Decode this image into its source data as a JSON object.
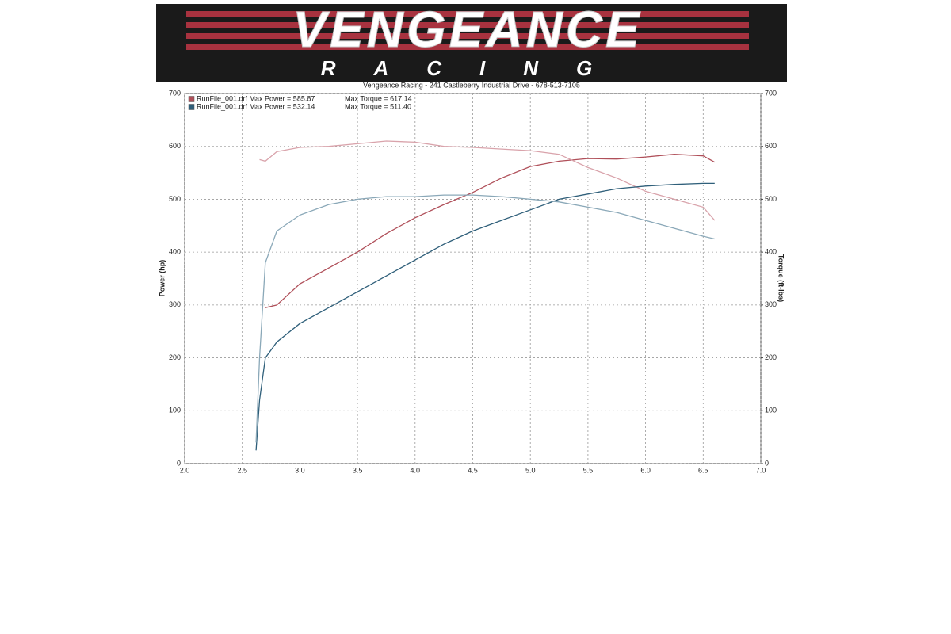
{
  "header": {
    "logo_title": "VENGEANCE",
    "logo_subtitle": "RACING"
  },
  "chart_data": {
    "type": "line",
    "title": "Vengeance Racing - 241 Castleberry Industrial Drive - 678-513-7105",
    "y_label": "Power (hp)",
    "y2_label": "Torque (ft-lbs)",
    "x": [
      2.62,
      2.65,
      2.7,
      2.8,
      3.0,
      3.25,
      3.5,
      3.75,
      4.0,
      4.25,
      4.5,
      4.75,
      5.0,
      5.25,
      5.5,
      5.75,
      6.0,
      6.25,
      6.5,
      6.6
    ],
    "series": [
      {
        "name": "RunFile_001.drf Max Power = 585.87",
        "color": "#b0505a",
        "values": [
          null,
          null,
          295,
          300,
          340,
          370,
          400,
          435,
          465,
          490,
          513,
          540,
          562,
          572,
          577,
          576,
          580,
          585,
          582,
          570
        ]
      },
      {
        "name": "Max Torque = 617.14",
        "color": "#d9a3ab",
        "axis": "y2",
        "values": [
          null,
          575,
          572,
          590,
          598,
          600,
          605,
          610,
          608,
          600,
          598,
          595,
          592,
          585,
          560,
          540,
          515,
          500,
          485,
          460
        ]
      },
      {
        "name": "RunFile_001.drf Max Power = 532.14",
        "color": "#2f5f7a",
        "values": [
          25,
          120,
          200,
          230,
          265,
          295,
          325,
          355,
          385,
          415,
          440,
          460,
          480,
          500,
          510,
          520,
          525,
          528,
          530,
          530
        ]
      },
      {
        "name": "Max Torque = 511.40",
        "color": "#8aa8b8",
        "axis": "y2",
        "values": [
          40,
          200,
          380,
          440,
          470,
          490,
          500,
          505,
          505,
          508,
          508,
          505,
          500,
          495,
          485,
          475,
          460,
          445,
          430,
          425
        ]
      }
    ],
    "xlim": [
      2,
      7
    ],
    "xticks": [
      {
        "value": 2,
        "label": "2.0"
      },
      2.5,
      {
        "value": 3,
        "label": "3.0"
      },
      3.5,
      {
        "value": 4,
        "label": "4.0"
      },
      4.5,
      {
        "value": 5,
        "label": "5.0"
      },
      5.5,
      {
        "value": 6,
        "label": "6.0"
      },
      6.5,
      {
        "value": 7,
        "label": "7.0"
      }
    ],
    "ylim": [
      0,
      700
    ],
    "yticks": [
      0,
      100,
      200,
      300,
      400,
      500,
      600,
      700
    ],
    "y2lim": [
      0,
      700
    ],
    "y2ticks": [
      0,
      100,
      200,
      300,
      400,
      500,
      600,
      700
    ],
    "grid": true
  }
}
